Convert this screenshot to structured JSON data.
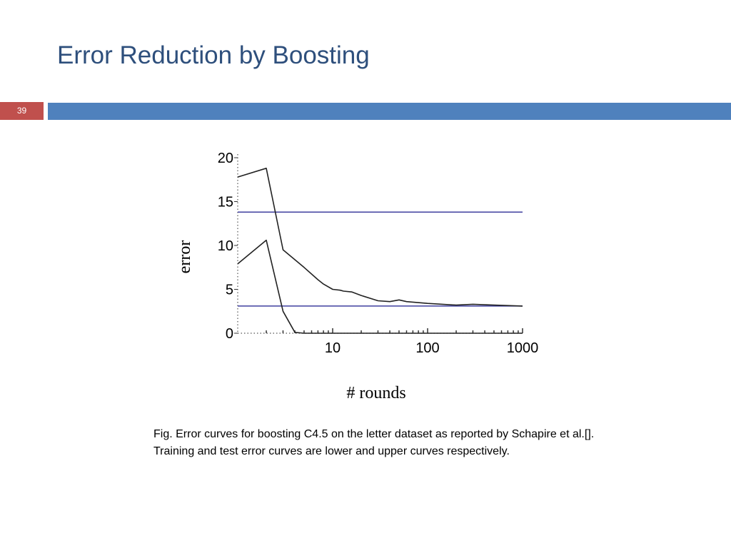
{
  "slide": {
    "title": "Error Reduction by Boosting",
    "page_number": "39",
    "caption": "Fig. Error curves for boosting C4.5 on the letter dataset as reported by Schapire et al.[]. Training and test error curves are lower and upper curves respectively."
  },
  "colors": {
    "title": "#2e4f7c",
    "header_bar": "#4f81bd",
    "page_badge": "#c0504d",
    "curves": "#222222",
    "reference_lines": "#3f3f9f"
  },
  "chart_data": {
    "type": "line",
    "xlabel": "# rounds",
    "ylabel": "error",
    "x_scale": "log",
    "xlim": [
      1,
      1000
    ],
    "ylim": [
      0,
      20
    ],
    "xticks": [
      10,
      100,
      1000
    ],
    "xtick_labels": [
      "10",
      "100",
      "1000"
    ],
    "yticks": [
      0,
      5,
      10,
      15,
      20
    ],
    "ytick_labels": [
      "0",
      "5",
      "10",
      "15",
      "20"
    ],
    "series": [
      {
        "role": "upper curve",
        "x": [
          1,
          2,
          3,
          5,
          7,
          8,
          10,
          12,
          13,
          16,
          20,
          30,
          40,
          50,
          60,
          100,
          200,
          300,
          500,
          1000
        ],
        "y": [
          17.8,
          18.8,
          9.5,
          7.5,
          6.1,
          5.6,
          5.0,
          4.9,
          4.8,
          4.7,
          4.3,
          3.7,
          3.6,
          3.8,
          3.6,
          3.4,
          3.2,
          3.3,
          3.2,
          3.1
        ]
      },
      {
        "role": "lower curve",
        "x": [
          1,
          2,
          3,
          4,
          5,
          10,
          100,
          1000
        ],
        "y": [
          7.9,
          10.6,
          2.5,
          0.1,
          0.0,
          0.0,
          0.0,
          0.0
        ]
      }
    ],
    "reference_lines": [
      {
        "y": 13.8
      },
      {
        "y": 3.1
      }
    ],
    "grid": false,
    "legend": "none"
  }
}
